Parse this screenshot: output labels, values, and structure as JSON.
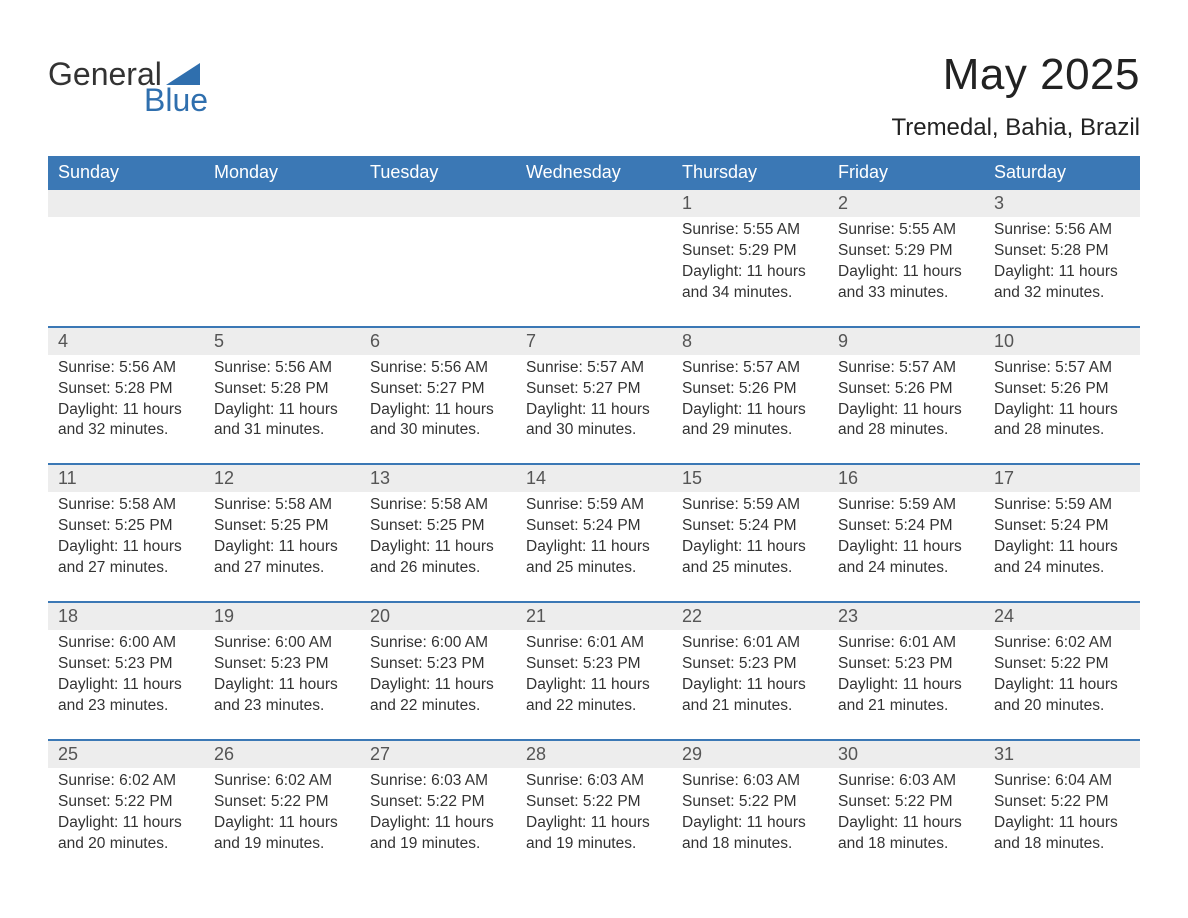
{
  "logo": {
    "text_top": "General",
    "text_bottom": "Blue"
  },
  "title": "May 2025",
  "location": "Tremedal, Bahia, Brazil",
  "colors": {
    "header_bg": "#3b78b5",
    "header_text": "#ffffff",
    "daynum_bg": "#ededed",
    "week_divider": "#3b78b5",
    "body_text": "#333333",
    "accent": "#2f6fae",
    "page_bg": "#ffffff"
  },
  "typography": {
    "title_fontsize_pt": 33,
    "subtitle_fontsize_pt": 18,
    "weekday_fontsize_pt": 14,
    "daynum_fontsize_pt": 14,
    "cell_fontsize_pt": 12
  },
  "weekdays": [
    "Sunday",
    "Monday",
    "Tuesday",
    "Wednesday",
    "Thursday",
    "Friday",
    "Saturday"
  ],
  "labels": {
    "sunrise": "Sunrise:",
    "sunset": "Sunset:",
    "daylight": "Daylight:"
  },
  "weeks": [
    [
      null,
      null,
      null,
      null,
      {
        "n": "1",
        "sunrise": "5:55 AM",
        "sunset": "5:29 PM",
        "daylight1": "11 hours",
        "daylight2": "and 34 minutes."
      },
      {
        "n": "2",
        "sunrise": "5:55 AM",
        "sunset": "5:29 PM",
        "daylight1": "11 hours",
        "daylight2": "and 33 minutes."
      },
      {
        "n": "3",
        "sunrise": "5:56 AM",
        "sunset": "5:28 PM",
        "daylight1": "11 hours",
        "daylight2": "and 32 minutes."
      }
    ],
    [
      {
        "n": "4",
        "sunrise": "5:56 AM",
        "sunset": "5:28 PM",
        "daylight1": "11 hours",
        "daylight2": "and 32 minutes."
      },
      {
        "n": "5",
        "sunrise": "5:56 AM",
        "sunset": "5:28 PM",
        "daylight1": "11 hours",
        "daylight2": "and 31 minutes."
      },
      {
        "n": "6",
        "sunrise": "5:56 AM",
        "sunset": "5:27 PM",
        "daylight1": "11 hours",
        "daylight2": "and 30 minutes."
      },
      {
        "n": "7",
        "sunrise": "5:57 AM",
        "sunset": "5:27 PM",
        "daylight1": "11 hours",
        "daylight2": "and 30 minutes."
      },
      {
        "n": "8",
        "sunrise": "5:57 AM",
        "sunset": "5:26 PM",
        "daylight1": "11 hours",
        "daylight2": "and 29 minutes."
      },
      {
        "n": "9",
        "sunrise": "5:57 AM",
        "sunset": "5:26 PM",
        "daylight1": "11 hours",
        "daylight2": "and 28 minutes."
      },
      {
        "n": "10",
        "sunrise": "5:57 AM",
        "sunset": "5:26 PM",
        "daylight1": "11 hours",
        "daylight2": "and 28 minutes."
      }
    ],
    [
      {
        "n": "11",
        "sunrise": "5:58 AM",
        "sunset": "5:25 PM",
        "daylight1": "11 hours",
        "daylight2": "and 27 minutes."
      },
      {
        "n": "12",
        "sunrise": "5:58 AM",
        "sunset": "5:25 PM",
        "daylight1": "11 hours",
        "daylight2": "and 27 minutes."
      },
      {
        "n": "13",
        "sunrise": "5:58 AM",
        "sunset": "5:25 PM",
        "daylight1": "11 hours",
        "daylight2": "and 26 minutes."
      },
      {
        "n": "14",
        "sunrise": "5:59 AM",
        "sunset": "5:24 PM",
        "daylight1": "11 hours",
        "daylight2": "and 25 minutes."
      },
      {
        "n": "15",
        "sunrise": "5:59 AM",
        "sunset": "5:24 PM",
        "daylight1": "11 hours",
        "daylight2": "and 25 minutes."
      },
      {
        "n": "16",
        "sunrise": "5:59 AM",
        "sunset": "5:24 PM",
        "daylight1": "11 hours",
        "daylight2": "and 24 minutes."
      },
      {
        "n": "17",
        "sunrise": "5:59 AM",
        "sunset": "5:24 PM",
        "daylight1": "11 hours",
        "daylight2": "and 24 minutes."
      }
    ],
    [
      {
        "n": "18",
        "sunrise": "6:00 AM",
        "sunset": "5:23 PM",
        "daylight1": "11 hours",
        "daylight2": "and 23 minutes."
      },
      {
        "n": "19",
        "sunrise": "6:00 AM",
        "sunset": "5:23 PM",
        "daylight1": "11 hours",
        "daylight2": "and 23 minutes."
      },
      {
        "n": "20",
        "sunrise": "6:00 AM",
        "sunset": "5:23 PM",
        "daylight1": "11 hours",
        "daylight2": "and 22 minutes."
      },
      {
        "n": "21",
        "sunrise": "6:01 AM",
        "sunset": "5:23 PM",
        "daylight1": "11 hours",
        "daylight2": "and 22 minutes."
      },
      {
        "n": "22",
        "sunrise": "6:01 AM",
        "sunset": "5:23 PM",
        "daylight1": "11 hours",
        "daylight2": "and 21 minutes."
      },
      {
        "n": "23",
        "sunrise": "6:01 AM",
        "sunset": "5:23 PM",
        "daylight1": "11 hours",
        "daylight2": "and 21 minutes."
      },
      {
        "n": "24",
        "sunrise": "6:02 AM",
        "sunset": "5:22 PM",
        "daylight1": "11 hours",
        "daylight2": "and 20 minutes."
      }
    ],
    [
      {
        "n": "25",
        "sunrise": "6:02 AM",
        "sunset": "5:22 PM",
        "daylight1": "11 hours",
        "daylight2": "and 20 minutes."
      },
      {
        "n": "26",
        "sunrise": "6:02 AM",
        "sunset": "5:22 PM",
        "daylight1": "11 hours",
        "daylight2": "and 19 minutes."
      },
      {
        "n": "27",
        "sunrise": "6:03 AM",
        "sunset": "5:22 PM",
        "daylight1": "11 hours",
        "daylight2": "and 19 minutes."
      },
      {
        "n": "28",
        "sunrise": "6:03 AM",
        "sunset": "5:22 PM",
        "daylight1": "11 hours",
        "daylight2": "and 19 minutes."
      },
      {
        "n": "29",
        "sunrise": "6:03 AM",
        "sunset": "5:22 PM",
        "daylight1": "11 hours",
        "daylight2": "and 18 minutes."
      },
      {
        "n": "30",
        "sunrise": "6:03 AM",
        "sunset": "5:22 PM",
        "daylight1": "11 hours",
        "daylight2": "and 18 minutes."
      },
      {
        "n": "31",
        "sunrise": "6:04 AM",
        "sunset": "5:22 PM",
        "daylight1": "11 hours",
        "daylight2": "and 18 minutes."
      }
    ]
  ]
}
